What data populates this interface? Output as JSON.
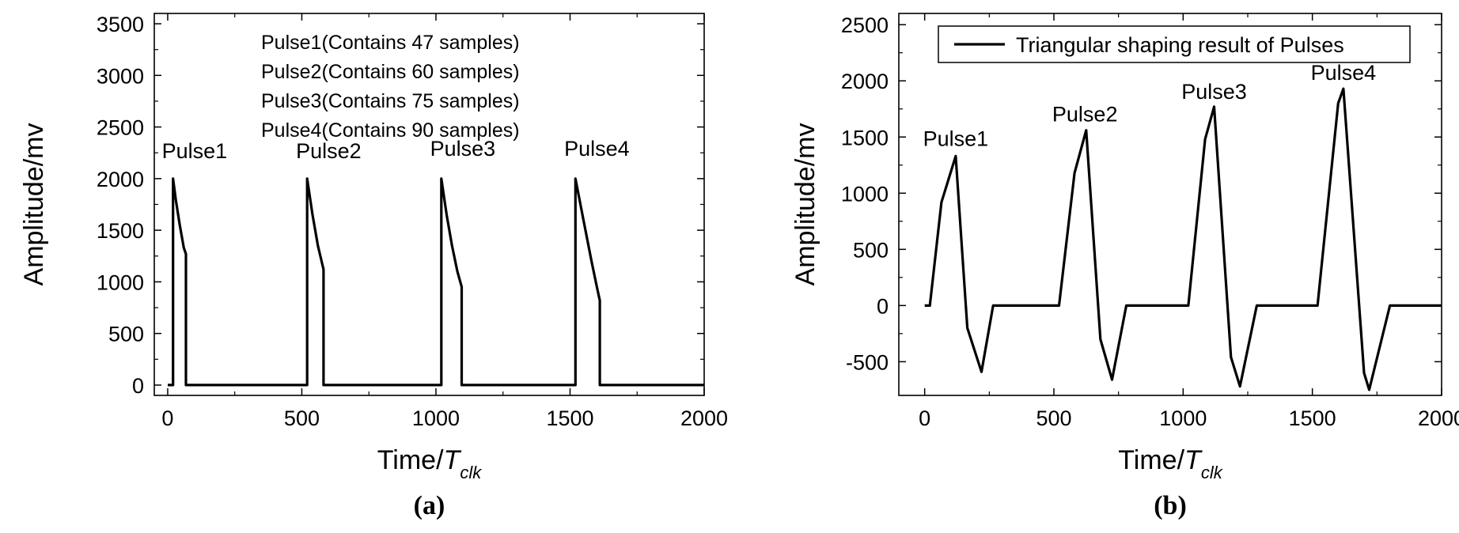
{
  "chart_data": [
    {
      "type": "line",
      "panel_label": "(a)",
      "xlabel_main": "Time/",
      "xlabel_italic": "T",
      "xlabel_sub": "clk",
      "ylabel": "Amplitude/mv",
      "xlim": [
        -50,
        2000
      ],
      "ylim": [
        -100,
        3600
      ],
      "xticks": [
        0,
        500,
        1000,
        1500,
        2000
      ],
      "yticks": [
        0,
        500,
        1000,
        1500,
        2000,
        2500,
        3000,
        3500
      ],
      "legend": "none",
      "grid": false,
      "text_lines": [
        "Pulse1(Contains 47 samples)",
        "Pulse2(Contains 60 samples)",
        "Pulse3(Contains 75 samples)",
        "Pulse4(Contains 90 samples)"
      ],
      "annotations": [
        {
          "text": "Pulse1",
          "x": 100,
          "y": 2200
        },
        {
          "text": "Pulse2",
          "x": 600,
          "y": 2200
        },
        {
          "text": "Pulse3",
          "x": 1100,
          "y": 2220
        },
        {
          "text": "Pulse4",
          "x": 1600,
          "y": 2220
        }
      ],
      "series": [
        {
          "x": [
            0,
            20,
            20,
            30,
            45,
            60,
            68,
            68,
            520,
            520,
            540,
            560,
            580,
            581,
            581,
            1020,
            1020,
            1040,
            1060,
            1080,
            1095,
            1096,
            1096,
            1520,
            1520,
            1550,
            1580,
            1600,
            1610,
            1611,
            1611,
            2000
          ],
          "y": [
            0,
            0,
            2000,
            1800,
            1550,
            1330,
            1270,
            0,
            0,
            2000,
            1650,
            1350,
            1130,
            1120,
            0,
            0,
            2000,
            1650,
            1350,
            1100,
            960,
            950,
            0,
            0,
            2000,
            1600,
            1200,
            950,
            830,
            820,
            0,
            0
          ]
        }
      ]
    },
    {
      "type": "line",
      "panel_label": "(b)",
      "xlabel_main": "Time/",
      "xlabel_italic": "T",
      "xlabel_sub": "clk",
      "ylabel": "Amplitude/mv",
      "xlim": [
        -100,
        2000
      ],
      "ylim": [
        -800,
        2600
      ],
      "xticks": [
        0,
        500,
        1000,
        1500,
        2000
      ],
      "yticks": [
        -500,
        0,
        500,
        1000,
        1500,
        2000,
        2500
      ],
      "legend": "top-right",
      "grid": false,
      "annotations": [
        {
          "text": "Pulse1",
          "x": 120,
          "y": 1420
        },
        {
          "text": "Pulse2",
          "x": 620,
          "y": 1640
        },
        {
          "text": "Pulse3",
          "x": 1120,
          "y": 1840
        },
        {
          "text": "Pulse4",
          "x": 1620,
          "y": 2010
        }
      ],
      "series": [
        {
          "name": "Triangular shaping result of  Pulses",
          "x": [
            0,
            20,
            65,
            120,
            165,
            220,
            265,
            520,
            580,
            625,
            680,
            725,
            780,
            1020,
            1085,
            1120,
            1185,
            1220,
            1285,
            1520,
            1600,
            1620,
            1700,
            1720,
            1800,
            2000
          ],
          "y": [
            0,
            0,
            920,
            1330,
            -200,
            -590,
            0,
            0,
            1180,
            1560,
            -300,
            -660,
            0,
            0,
            1480,
            1770,
            -460,
            -720,
            0,
            0,
            1800,
            1930,
            -600,
            -750,
            0,
            0
          ]
        }
      ]
    }
  ]
}
